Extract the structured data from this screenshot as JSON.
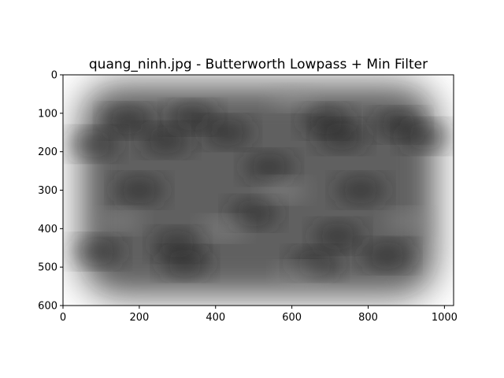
{
  "chart_data": {
    "type": "heatmap",
    "title": "quang_ninh.jpg - Butterworth Lowpass + Min Filter",
    "colormap": "gray",
    "xlabel": "",
    "ylabel": "",
    "xlim": [
      0,
      1024
    ],
    "ylim": [
      600,
      0
    ],
    "x_ticks": [
      0,
      200,
      400,
      600,
      800,
      1000
    ],
    "y_ticks": [
      0,
      100,
      200,
      300,
      400,
      500,
      600
    ],
    "x_tick_labels": [
      "0",
      "200",
      "400",
      "600",
      "800",
      "1000"
    ],
    "y_tick_labels": [
      "0",
      "100",
      "200",
      "300",
      "400",
      "500",
      "600"
    ],
    "grid": false,
    "background_level": 1.0,
    "base_level": 0.35,
    "dark_blobs": [
      {
        "x": 170,
        "y": 120
      },
      {
        "x": 270,
        "y": 170
      },
      {
        "x": 340,
        "y": 110
      },
      {
        "x": 430,
        "y": 150
      },
      {
        "x": 690,
        "y": 120
      },
      {
        "x": 730,
        "y": 160
      },
      {
        "x": 880,
        "y": 130
      },
      {
        "x": 950,
        "y": 160
      },
      {
        "x": 80,
        "y": 180
      },
      {
        "x": 540,
        "y": 240
      },
      {
        "x": 500,
        "y": 360
      },
      {
        "x": 300,
        "y": 440
      },
      {
        "x": 320,
        "y": 490
      },
      {
        "x": 720,
        "y": 420
      },
      {
        "x": 660,
        "y": 490
      },
      {
        "x": 90,
        "y": 460
      },
      {
        "x": 850,
        "y": 470
      },
      {
        "x": 200,
        "y": 300
      },
      {
        "x": 780,
        "y": 300
      }
    ],
    "light_blobs": [
      {
        "x": 600,
        "y": 60
      },
      {
        "x": 420,
        "y": 400
      },
      {
        "x": 150,
        "y": 380
      },
      {
        "x": 900,
        "y": 380
      },
      {
        "x": 580,
        "y": 300
      },
      {
        "x": 620,
        "y": 520
      }
    ]
  }
}
